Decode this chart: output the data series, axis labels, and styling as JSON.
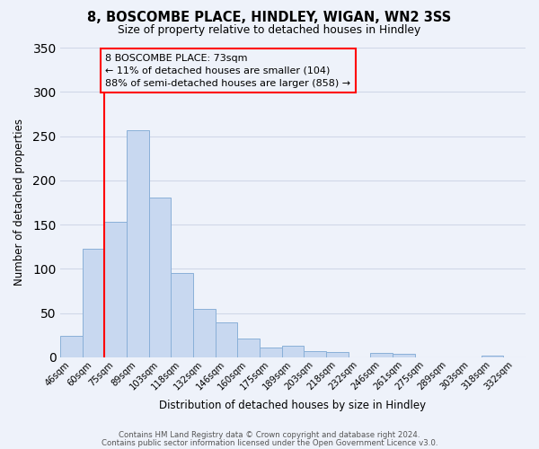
{
  "title": "8, BOSCOMBE PLACE, HINDLEY, WIGAN, WN2 3SS",
  "subtitle": "Size of property relative to detached houses in Hindley",
  "xlabel": "Distribution of detached houses by size in Hindley",
  "ylabel": "Number of detached properties",
  "bar_color": "#c8d8f0",
  "bar_edge_color": "#8ab0d8",
  "background_color": "#eef2fa",
  "grid_color": "#d0d8e8",
  "categories": [
    "46sqm",
    "60sqm",
    "75sqm",
    "89sqm",
    "103sqm",
    "118sqm",
    "132sqm",
    "146sqm",
    "160sqm",
    "175sqm",
    "189sqm",
    "203sqm",
    "218sqm",
    "232sqm",
    "246sqm",
    "261sqm",
    "275sqm",
    "289sqm",
    "303sqm",
    "318sqm",
    "332sqm"
  ],
  "values": [
    24,
    123,
    153,
    257,
    180,
    95,
    55,
    39,
    21,
    11,
    13,
    7,
    6,
    0,
    5,
    4,
    0,
    0,
    0,
    2,
    0
  ],
  "ylim": [
    0,
    350
  ],
  "yticks": [
    0,
    50,
    100,
    150,
    200,
    250,
    300,
    350
  ],
  "marker_bin_index": 2,
  "annotation_title": "8 BOSCOMBE PLACE: 73sqm",
  "annotation_line1": "← 11% of detached houses are smaller (104)",
  "annotation_line2": "88% of semi-detached houses are larger (858) →",
  "footer1": "Contains HM Land Registry data © Crown copyright and database right 2024.",
  "footer2": "Contains public sector information licensed under the Open Government Licence v3.0."
}
